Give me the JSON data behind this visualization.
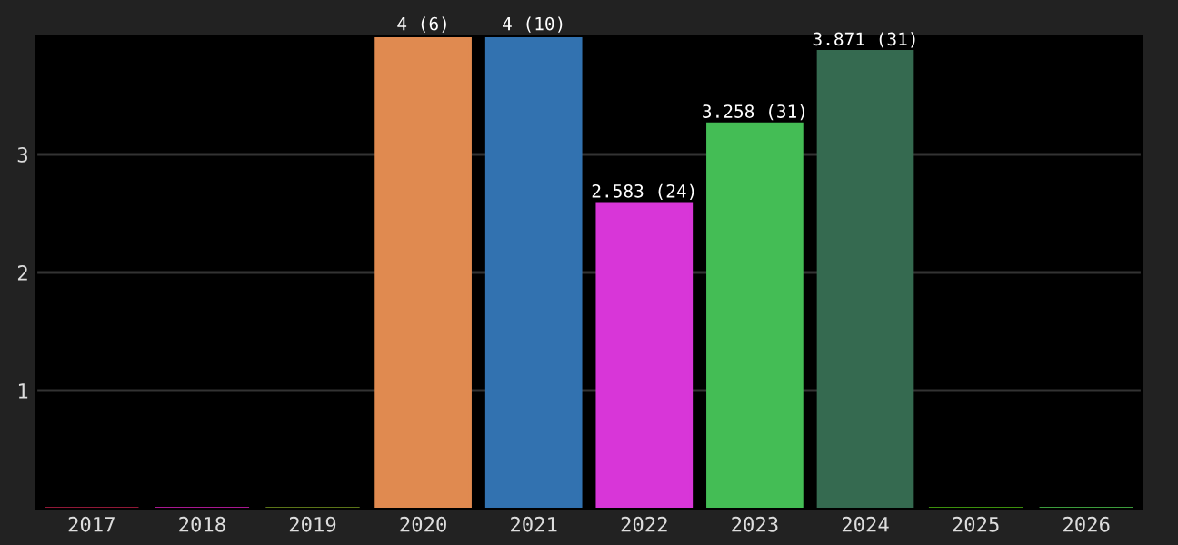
{
  "chart_data": {
    "type": "bar",
    "categories": [
      "2017",
      "2018",
      "2019",
      "2020",
      "2021",
      "2022",
      "2023",
      "2024",
      "2025",
      "2026"
    ],
    "values": [
      0,
      0,
      0,
      4,
      4,
      2.583,
      3.258,
      3.871,
      0,
      0
    ],
    "colors": [
      "#c0204a",
      "#e020c0",
      "#7a9a20",
      "#e08a50",
      "#3272b0",
      "#d836d8",
      "#44bd55",
      "#356a50",
      "#50c010",
      "#50d050"
    ],
    "value_labels": [
      null,
      null,
      null,
      "4 (6)",
      "4 (10)",
      "2.583 (24)",
      "3.258 (31)",
      "3.871 (31)",
      null,
      null
    ],
    "ylim": [
      0,
      4
    ],
    "yticks": [
      1,
      2,
      3
    ],
    "grid": "y",
    "legend": false
  }
}
